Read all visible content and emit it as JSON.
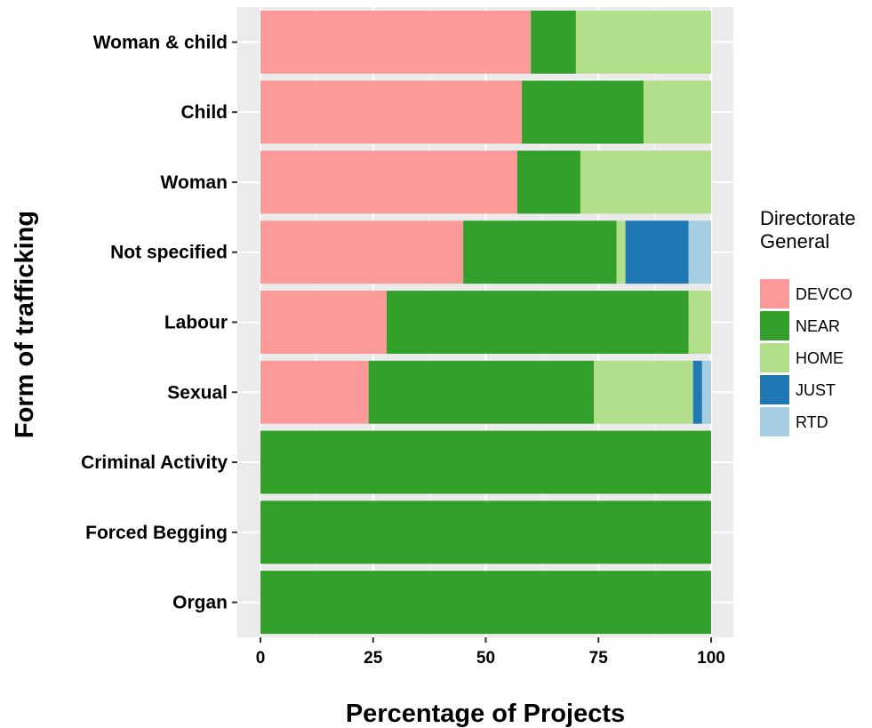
{
  "chart_data": {
    "type": "bar",
    "orientation": "horizontal",
    "stacked": true,
    "categories": [
      "Woman & child",
      "Child",
      "Woman",
      "Not specified",
      "Labour",
      "Sexual",
      "Criminal Activity",
      "Forced Begging",
      "Organ"
    ],
    "series": [
      {
        "name": "DEVCO",
        "color": "#fb9a99",
        "values": [
          60,
          58,
          57,
          45,
          28,
          24,
          0,
          0,
          0
        ]
      },
      {
        "name": "NEAR",
        "color": "#33a02c",
        "values": [
          10,
          27,
          14,
          34,
          67,
          50,
          100,
          100,
          100
        ]
      },
      {
        "name": "HOME",
        "color": "#b2df8a",
        "values": [
          30,
          15,
          29,
          2,
          5,
          22,
          0,
          0,
          0
        ]
      },
      {
        "name": "JUST",
        "color": "#1f78b4",
        "values": [
          0,
          0,
          0,
          14,
          0,
          2,
          0,
          0,
          0
        ]
      },
      {
        "name": "RTD",
        "color": "#a6cee3",
        "values": [
          0,
          0,
          0,
          5,
          0,
          2,
          0,
          0,
          0
        ]
      }
    ],
    "xlabel": "Percentage of Projects",
    "ylabel": "Form of trafficking",
    "xlim": [
      0,
      100
    ],
    "xticks": [
      "0",
      "25",
      "50",
      "75",
      "100"
    ],
    "grid": true,
    "panel_background": "#ebebeb",
    "legend": {
      "title": [
        "Directorate",
        "General"
      ],
      "placement": "right"
    }
  }
}
